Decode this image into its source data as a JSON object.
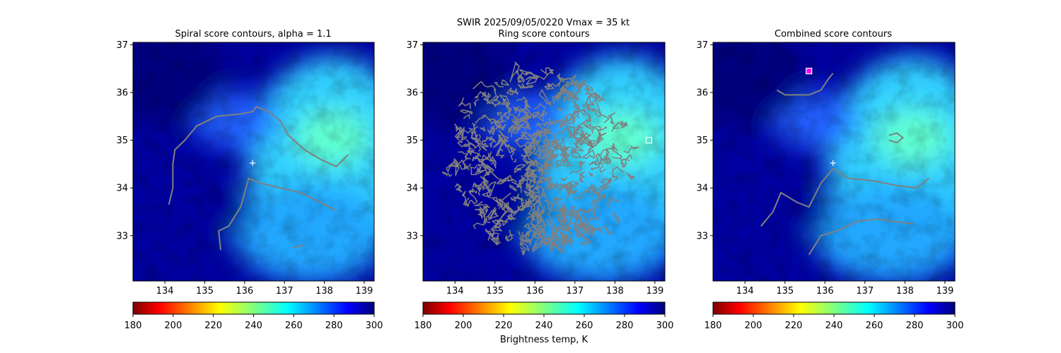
{
  "suptitle_line1": "SWIR  2025/09/05/0220    Vmax = 35 kt",
  "colorbar_label": "Brightness temp, K",
  "colors": {
    "contour": "#808080",
    "cold_bg": "#00008b",
    "marker": "#ffffff",
    "marker_magenta": "#ff00ff"
  },
  "chart_data": [
    {
      "type": "heatmap",
      "title": "Spiral score contours, alpha =  1.1",
      "xlim": [
        133.2,
        139.25
      ],
      "ylim": [
        32.05,
        37.05
      ],
      "xticks": [
        "134",
        "135",
        "136",
        "137",
        "138",
        "139"
      ],
      "yticks": [
        "33",
        "34",
        "35",
        "36",
        "37"
      ],
      "center_marker": {
        "lon": 136.2,
        "lat": 34.52
      },
      "contours": [
        [
          [
            134.1,
            33.65
          ],
          [
            134.2,
            34.0
          ],
          [
            134.2,
            34.5
          ],
          [
            134.25,
            34.8
          ],
          [
            134.5,
            35.0
          ],
          [
            134.8,
            35.3
          ],
          [
            135.3,
            35.5
          ],
          [
            135.9,
            35.55
          ],
          [
            136.2,
            35.6
          ],
          [
            136.3,
            35.7
          ],
          [
            136.6,
            35.6
          ],
          [
            136.9,
            35.4
          ],
          [
            137.1,
            35.1
          ],
          [
            137.5,
            34.8
          ],
          [
            137.9,
            34.6
          ],
          [
            138.3,
            34.45
          ],
          [
            138.6,
            34.7
          ]
        ],
        [
          [
            135.4,
            32.7
          ],
          [
            135.35,
            33.1
          ],
          [
            135.6,
            33.2
          ],
          [
            135.9,
            33.6
          ],
          [
            136.1,
            34.2
          ],
          [
            136.4,
            34.1
          ],
          [
            136.9,
            34.0
          ],
          [
            137.4,
            33.9
          ],
          [
            137.9,
            33.7
          ],
          [
            138.3,
            33.52
          ]
        ],
        [
          [
            137.2,
            32.75
          ],
          [
            137.5,
            32.8
          ]
        ]
      ],
      "boxes": []
    },
    {
      "type": "heatmap",
      "title": "Ring score contours",
      "xlim": [
        133.2,
        139.25
      ],
      "ylim": [
        32.05,
        37.05
      ],
      "xticks": [
        "134",
        "135",
        "136",
        "137",
        "138",
        "139"
      ],
      "yticks": [
        "33",
        "34",
        "35",
        "36",
        "37"
      ],
      "ring_region": {
        "center": [
          136.9,
          34.52
        ],
        "radius_deg": 2.3
      },
      "contours": [],
      "boxes": [
        {
          "lon": 138.85,
          "lat": 35.0,
          "color": "white"
        }
      ]
    },
    {
      "type": "heatmap",
      "title": "Combined score contours",
      "xlim": [
        133.2,
        139.25
      ],
      "ylim": [
        32.05,
        37.05
      ],
      "xticks": [
        "134",
        "135",
        "136",
        "137",
        "138",
        "139"
      ],
      "yticks": [
        "33",
        "34",
        "35",
        "36",
        "37"
      ],
      "center_marker": {
        "lon": 136.2,
        "lat": 34.52
      },
      "contours": [
        [
          [
            134.8,
            36.05
          ],
          [
            135.0,
            35.95
          ],
          [
            135.3,
            35.95
          ],
          [
            135.6,
            35.95
          ],
          [
            135.9,
            36.05
          ],
          [
            136.1,
            36.3
          ],
          [
            136.2,
            36.4
          ]
        ],
        [
          [
            137.6,
            35.1
          ],
          [
            137.8,
            35.15
          ],
          [
            137.95,
            35.05
          ],
          [
            137.8,
            34.95
          ],
          [
            137.6,
            35.0
          ]
        ],
        [
          [
            134.4,
            33.2
          ],
          [
            134.7,
            33.5
          ],
          [
            134.9,
            33.9
          ],
          [
            135.3,
            33.7
          ],
          [
            135.6,
            33.6
          ],
          [
            135.9,
            34.1
          ],
          [
            136.2,
            34.4
          ],
          [
            136.6,
            34.2
          ],
          [
            137.2,
            34.15
          ],
          [
            137.8,
            34.05
          ],
          [
            138.3,
            34.0
          ],
          [
            138.6,
            34.2
          ]
        ],
        [
          [
            135.6,
            32.6
          ],
          [
            135.9,
            33.0
          ],
          [
            136.3,
            33.1
          ],
          [
            136.8,
            33.3
          ],
          [
            137.3,
            33.35
          ],
          [
            137.7,
            33.3
          ],
          [
            138.2,
            33.25
          ]
        ]
      ],
      "boxes": [
        {
          "lon": 135.6,
          "lat": 36.45,
          "color": "magenta"
        }
      ]
    }
  ],
  "colorbars": [
    {
      "ticks": [
        "180",
        "200",
        "220",
        "240",
        "260",
        "280",
        "300"
      ],
      "range": [
        180,
        300
      ]
    },
    {
      "ticks": [
        "180",
        "200",
        "220",
        "240",
        "260",
        "280",
        "300"
      ],
      "range": [
        180,
        300
      ]
    },
    {
      "ticks": [
        "180",
        "200",
        "220",
        "240",
        "260",
        "280",
        "300"
      ],
      "range": [
        180,
        300
      ]
    }
  ]
}
